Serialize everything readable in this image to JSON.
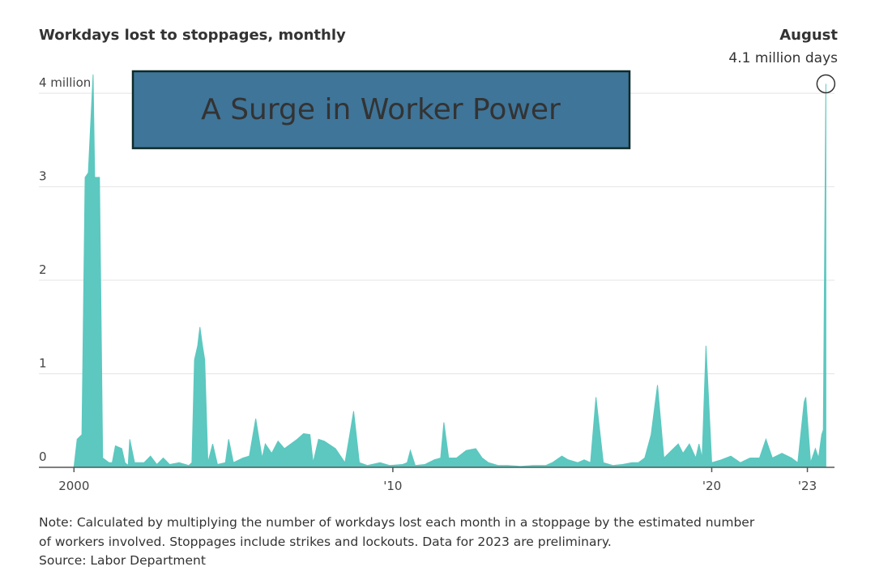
{
  "chart_data": {
    "type": "area",
    "title": "A Surge in Worker Power",
    "subtitle": "Workdays lost to stoppages, monthly",
    "annotation": {
      "title": "August",
      "text": "4.1 million days"
    },
    "note": "Note: Calculated by multiplying the number of workdays lost each month in a stoppage by the estimated number of workers involved. Stoppages include strikes and lockouts. Data for 2023 are preliminary.",
    "source": "Source: Labor Department",
    "color": "#5cc8c0",
    "grid": true,
    "xlim": [
      1998.9,
      2023.85
    ],
    "ylim": [
      0,
      4.2
    ],
    "xticks": [
      {
        "value": 2000,
        "label": "2000"
      },
      {
        "value": 2010,
        "label": "'10"
      },
      {
        "value": 2020,
        "label": "'20"
      },
      {
        "value": 2023,
        "label": "'23"
      }
    ],
    "yticks": [
      0,
      1,
      2,
      3,
      {
        "value": 4,
        "label": "4 million"
      }
    ],
    "x": [
      2000.0,
      2000.1,
      2000.25,
      2000.35,
      2000.45,
      2000.6,
      2000.65,
      2000.8,
      2000.9,
      2001.1,
      2001.2,
      2001.3,
      2001.5,
      2001.6,
      2001.7,
      2001.75,
      2001.9,
      2002.2,
      2002.4,
      2002.6,
      2002.8,
      2003.0,
      2003.3,
      2003.6,
      2003.7,
      2003.78,
      2003.88,
      2003.95,
      2004.03,
      2004.1,
      2004.2,
      2004.35,
      2004.5,
      2004.75,
      2004.85,
      2005.0,
      2005.3,
      2005.5,
      2005.7,
      2005.9,
      2006.0,
      2006.2,
      2006.4,
      2006.6,
      2006.8,
      2007.0,
      2007.2,
      2007.4,
      2007.5,
      2007.67,
      2007.85,
      2008.2,
      2008.5,
      2008.65,
      2008.77,
      2008.95,
      2009.2,
      2009.6,
      2009.9,
      2010.3,
      2010.45,
      2010.55,
      2010.7,
      2011.0,
      2011.3,
      2011.5,
      2011.6,
      2011.75,
      2012.0,
      2012.3,
      2012.6,
      2012.8,
      2013.0,
      2013.3,
      2013.6,
      2014.0,
      2014.4,
      2014.8,
      2015.0,
      2015.3,
      2015.5,
      2015.8,
      2016.0,
      2016.2,
      2016.37,
      2016.6,
      2016.9,
      2017.2,
      2017.5,
      2017.7,
      2017.9,
      2018.1,
      2018.3,
      2018.5,
      2018.8,
      2018.95,
      2019.1,
      2019.3,
      2019.5,
      2019.6,
      2019.7,
      2019.82,
      2020.0,
      2020.3,
      2020.6,
      2020.9,
      2021.2,
      2021.5,
      2021.7,
      2021.9,
      2022.2,
      2022.5,
      2022.7,
      2022.9,
      2022.95,
      2023.1,
      2023.25,
      2023.35,
      2023.45,
      2023.5,
      2023.58
    ],
    "values": [
      0,
      0.3,
      0.35,
      3.1,
      3.15,
      4.2,
      3.1,
      3.1,
      0.1,
      0.05,
      0.05,
      0.23,
      0.2,
      0.05,
      0.02,
      0.3,
      0.05,
      0.05,
      0.12,
      0.03,
      0.1,
      0.03,
      0.05,
      0.02,
      0.05,
      1.15,
      1.3,
      1.5,
      1.3,
      1.15,
      0.05,
      0.25,
      0.03,
      0.05,
      0.3,
      0.05,
      0.1,
      0.12,
      0.52,
      0.1,
      0.25,
      0.15,
      0.28,
      0.2,
      0.25,
      0.3,
      0.36,
      0.35,
      0.05,
      0.3,
      0.28,
      0.2,
      0.05,
      0.35,
      0.6,
      0.05,
      0.02,
      0.05,
      0.02,
      0.03,
      0.05,
      0.18,
      0.02,
      0.03,
      0.08,
      0.1,
      0.48,
      0.1,
      0.1,
      0.18,
      0.2,
      0.1,
      0.05,
      0.02,
      0.02,
      0.01,
      0.02,
      0.02,
      0.05,
      0.12,
      0.08,
      0.05,
      0.08,
      0.05,
      0.75,
      0.05,
      0.02,
      0.03,
      0.05,
      0.05,
      0.1,
      0.35,
      0.88,
      0.1,
      0.2,
      0.25,
      0.15,
      0.25,
      0.1,
      0.25,
      0.1,
      1.3,
      0.05,
      0.08,
      0.12,
      0.05,
      0.1,
      0.1,
      0.3,
      0.1,
      0.15,
      0.1,
      0.05,
      0.7,
      0.75,
      0.05,
      0.2,
      0.1,
      0.35,
      0.4,
      4.1
    ]
  }
}
